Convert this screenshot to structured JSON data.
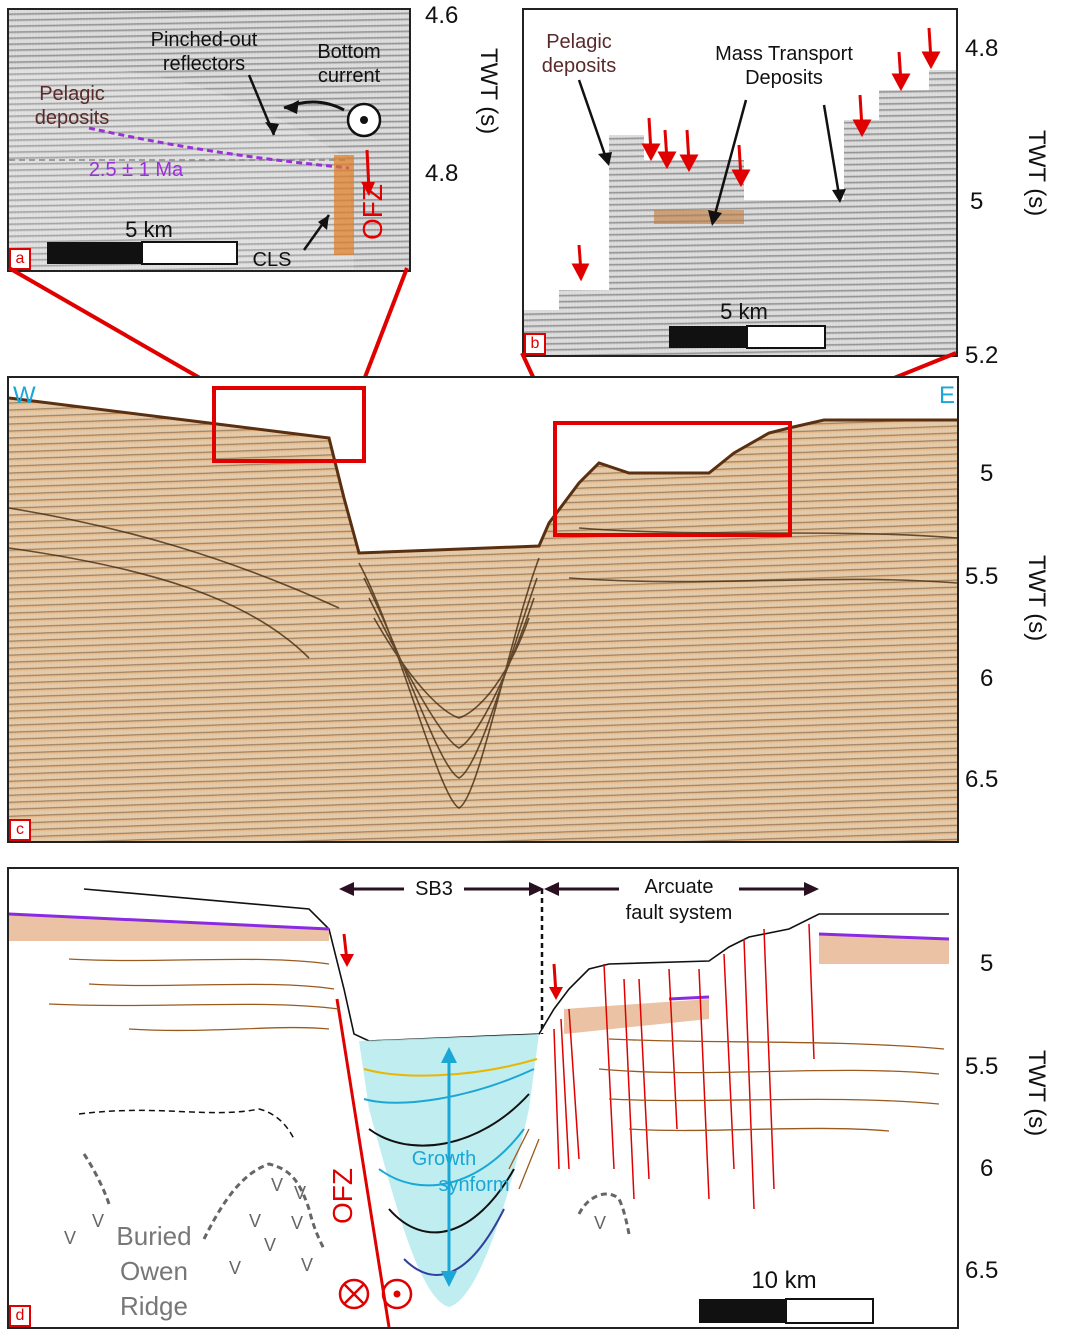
{
  "panel_a": {
    "label": "a",
    "annotations": {
      "pelagic": "Pelagic deposits",
      "pinched": "Pinched-out reflectors",
      "bottom_current": "Bottom current",
      "age": "2.5 ± 1 Ma",
      "ofz": "OFZ",
      "cls": "CLS",
      "scale": "5 km"
    },
    "ticks": [
      "4.6",
      "4.8"
    ],
    "axis_title": "TWT (s)"
  },
  "panel_b": {
    "label": "b",
    "annotations": {
      "pelagic": "Pelagic deposits",
      "mtd": "Mass Transport Deposits",
      "scale": "5 km"
    },
    "ticks": [
      "4.8",
      "5",
      "5.2"
    ],
    "axis_title": "TWT (s)"
  },
  "panel_c": {
    "label": "c",
    "west": "W",
    "east": "E",
    "ticks": [
      "5",
      "5.5",
      "6",
      "6.5"
    ],
    "axis_title": "TWT (s)"
  },
  "panel_d": {
    "label": "d",
    "sb3": "SB3",
    "arcuate_1": "Arcuate",
    "arcuate_2": "fault system",
    "growth_1": "Growth",
    "growth_2": "synform",
    "ofz": "OFZ",
    "buried_1": "Buried",
    "buried_2": "Owen",
    "buried_3": "Ridge",
    "scale": "10 km",
    "ticks": [
      "5",
      "5.5",
      "6",
      "6.5"
    ],
    "axis_title": "TWT (s)"
  },
  "colors": {
    "fault": "#e00000",
    "purple": "#8a2be2",
    "cyan": "#1aa7d6",
    "reflector": "#9a5a1e"
  }
}
